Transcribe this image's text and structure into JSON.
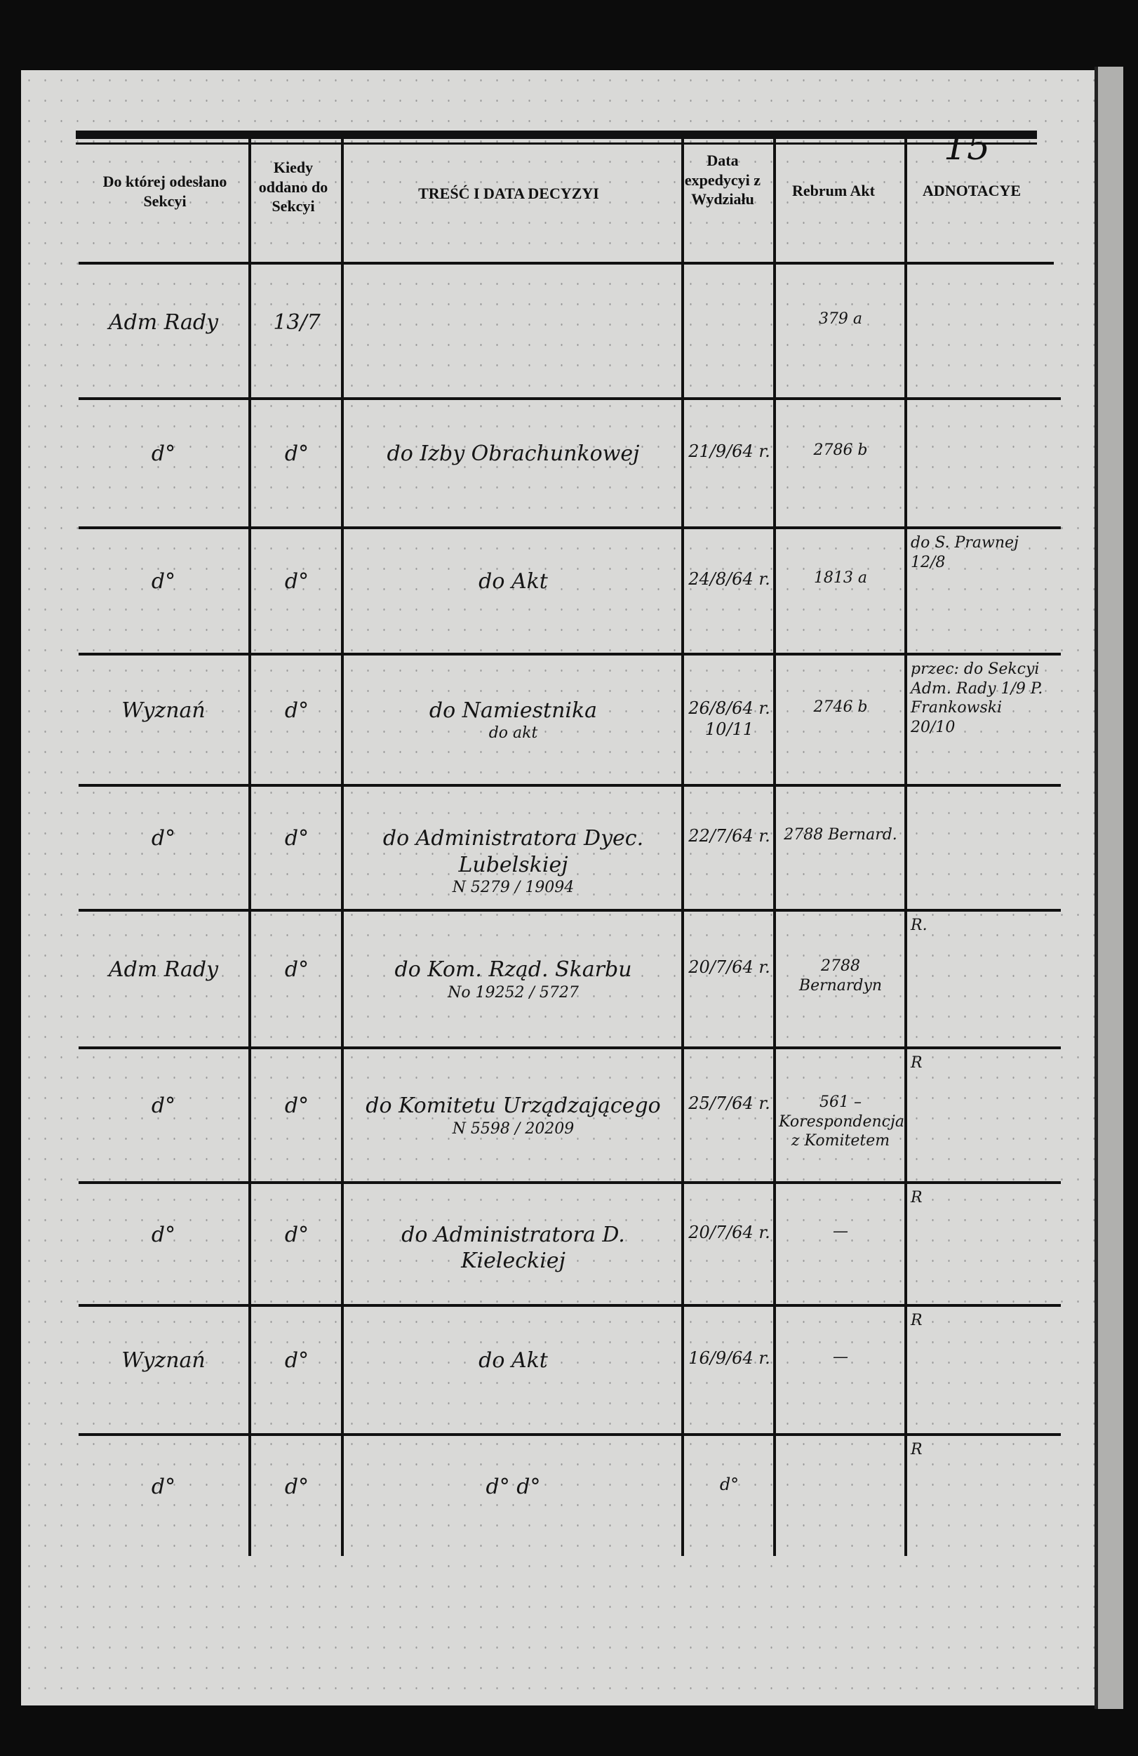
{
  "page_number": "15",
  "headers": {
    "col1": "Do której odesłano Sekcyi",
    "col2": "Kiedy oddano do Sekcyi",
    "col3": "TREŚĆ I DATA DECYZYI",
    "col4": "Data expedycyi z Wydziału",
    "col5": "Rebrum Akt",
    "col6": "ADNOTACYE"
  },
  "rows": [
    {
      "sekcja": "Adm Rady",
      "kiedy": "13/7",
      "tresc": "",
      "tresc2": "",
      "data_exp": "",
      "rebrum": "379 a",
      "rebrum2": "",
      "adnotacye": ""
    },
    {
      "sekcja": "d°",
      "kiedy": "d°",
      "tresc": "do Izby Obrachunkowej",
      "tresc2": "",
      "data_exp": "21/9/64 r.",
      "rebrum": "2786 b",
      "rebrum2": "",
      "adnotacye": ""
    },
    {
      "sekcja": "d°",
      "kiedy": "d°",
      "tresc": "do Akt",
      "tresc2": "",
      "data_exp": "24/8/64 r.",
      "rebrum": "1813 a",
      "rebrum2": "",
      "adnotacye": "do S. Prawnej 12/8"
    },
    {
      "sekcja": "Wyznań",
      "kiedy": "d°",
      "tresc": "do Namiestnika",
      "tresc2": "do akt",
      "data_exp": "26/8/64 r. 10/11",
      "rebrum": "2746 b",
      "rebrum2": "",
      "adnotacye": "przec: do Sekcyi Adm. Rady 1/9 P. Frankowski 20/10"
    },
    {
      "sekcja": "d°",
      "kiedy": "d°",
      "tresc": "do Administratora Dyec. Lubelskiej",
      "tresc2": "N 5279 / 19094",
      "data_exp": "22/7/64 r.",
      "rebrum": "2788 Bernard.",
      "rebrum2": "",
      "adnotacye": ""
    },
    {
      "sekcja": "Adm Rady",
      "kiedy": "d°",
      "tresc": "do Kom. Rząd. Skarbu",
      "tresc2": "No 19252 / 5727",
      "data_exp": "20/7/64 r.",
      "rebrum": "2788",
      "rebrum2": "Bernardyn",
      "adnotacye": "R."
    },
    {
      "sekcja": "d°",
      "kiedy": "d°",
      "tresc": "do Komitetu Urządzającego",
      "tresc2": "N 5598 / 20209",
      "data_exp": "25/7/64 r.",
      "rebrum": "561 –",
      "rebrum2": "Korespondencja z Komitetem",
      "adnotacye": "R"
    },
    {
      "sekcja": "d°",
      "kiedy": "d°",
      "tresc": "do Administratora D. Kieleckiej",
      "tresc2": "",
      "data_exp": "20/7/64 r.",
      "rebrum": "—",
      "rebrum2": "",
      "adnotacye": "R"
    },
    {
      "sekcja": "Wyznań",
      "kiedy": "d°",
      "tresc": "do Akt",
      "tresc2": "",
      "data_exp": "16/9/64 r.",
      "rebrum": "—",
      "rebrum2": "",
      "adnotacye": "R"
    },
    {
      "sekcja": "d°",
      "kiedy": "d°",
      "tresc": "d°      d°",
      "tresc2": "",
      "data_exp": "d°",
      "rebrum": "",
      "rebrum2": "",
      "adnotacye": "R"
    }
  ]
}
